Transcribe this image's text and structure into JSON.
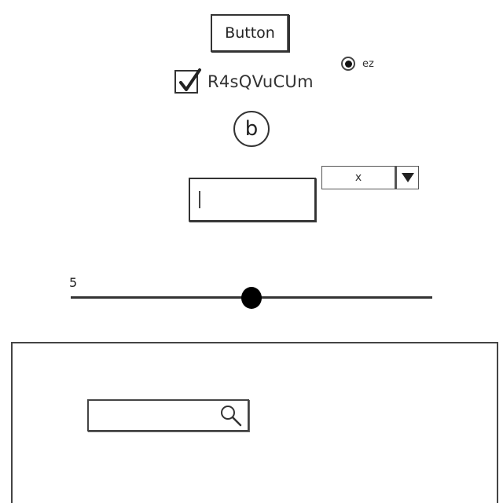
{
  "button": {
    "label": "Button"
  },
  "checkbox": {
    "label": "R4sQVuCUm",
    "checked": true
  },
  "radio": {
    "label": "ez",
    "selected": true
  },
  "circle_icon": {
    "glyph": "b"
  },
  "text_input": {
    "value": "",
    "placeholder": ""
  },
  "dropdown": {
    "selected": "x"
  },
  "slider": {
    "value_label": "5",
    "value_fraction": 0.5
  },
  "search": {
    "value": "",
    "placeholder": ""
  },
  "icons": {
    "checkbox_mark": "check-icon",
    "dropdown": "triangle-down-icon",
    "search": "magnifier-icon"
  }
}
